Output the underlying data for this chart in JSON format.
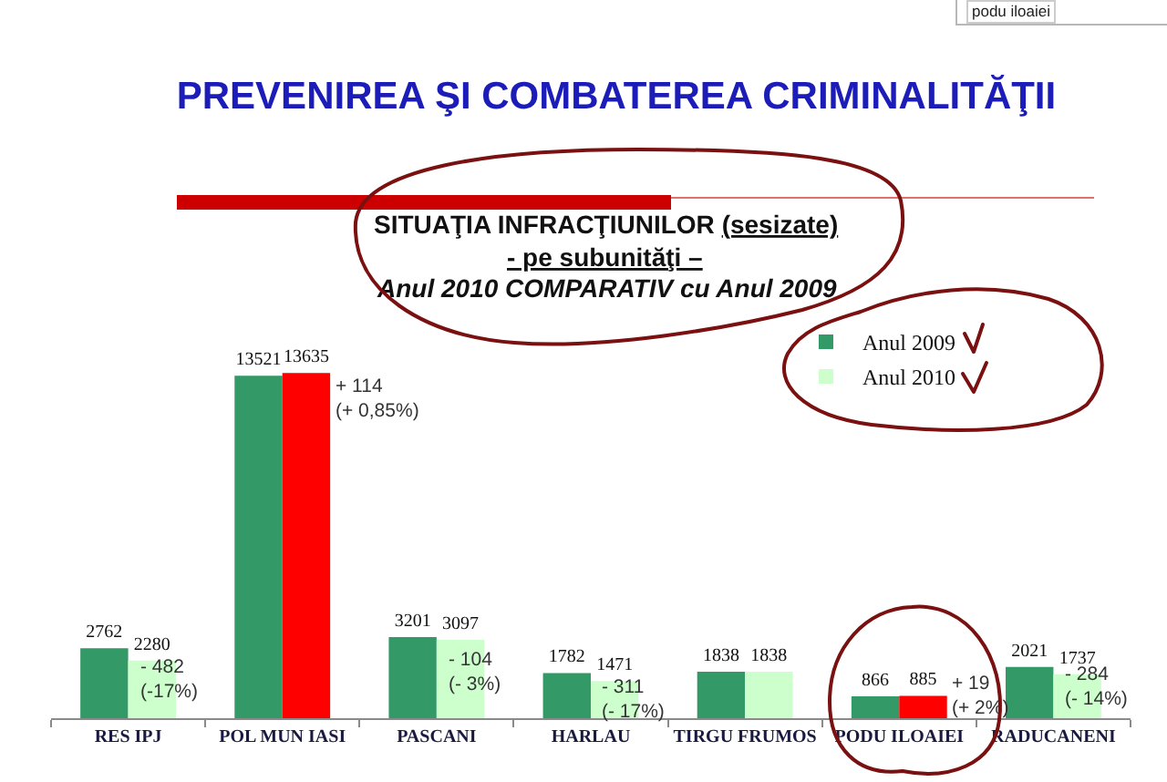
{
  "chart_data": {
    "type": "bar",
    "title": "PREVENIREA ŞI COMBATEREA CRIMINALITĂŢII",
    "subtitle": "SITUAŢIA INFRACŢIUNILOR (sesizate)\n- pe subunităţi –\nAnul 2010 COMPARATIV cu Anul 2009",
    "categories": [
      "RES IPJ",
      "POL MUN IASI",
      "PASCANI",
      "HARLAU",
      "TIRGU FRUMOS",
      "PODU ILOAIEI",
      "RADUCANENI"
    ],
    "series": [
      {
        "name": "Anul 2009",
        "color": "#339966",
        "values": [
          2762,
          13521,
          3201,
          1782,
          1838,
          866,
          2021
        ]
      },
      {
        "name": "Anul 2010",
        "color": "#ccffcc",
        "colors": [
          "#ccffcc",
          "#ff0000",
          "#ccffcc",
          "#ccffcc",
          "#ccffcc",
          "#ff0000",
          "#ccffcc"
        ],
        "values": [
          2280,
          13635,
          3097,
          1471,
          1838,
          885,
          1737
        ]
      }
    ],
    "data_labels": true,
    "legend": "top right",
    "annotations": [
      "podu iloaiei",
      {
        "text": "- 482\n(-17%)",
        "x": "RES IPJ",
        "y": 1500
      },
      {
        "text": "+ 114\n(+ 0,85%)",
        "x": "POL MUN IASI",
        "y": 12600
      },
      {
        "text": "- 104\n(- 3%)",
        "x": "PASCANI",
        "y": 1800
      },
      {
        "text": "- 311\n(- 17%)",
        "x": "HARLAU",
        "y": 750
      },
      {
        "text": "+ 19\n(+ 2%)",
        "x": "PODU ILOAIEI",
        "y": 850
      },
      {
        "text": "- 284\n(- 14%)",
        "x": "RADUCANENI",
        "y": 1200
      }
    ]
  }
}
